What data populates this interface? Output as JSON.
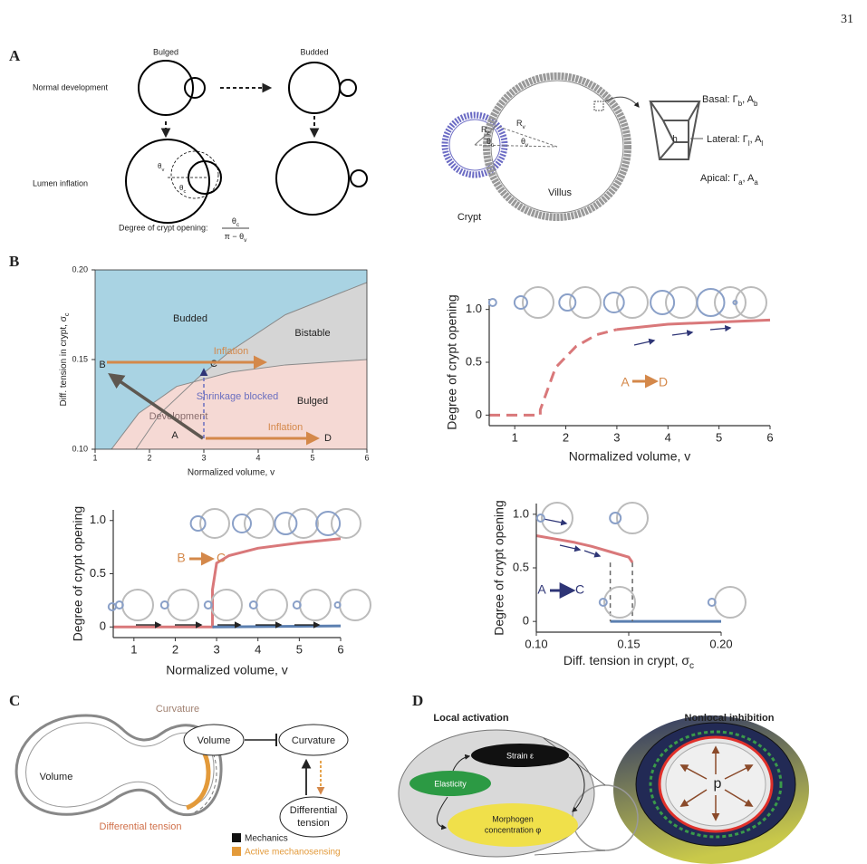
{
  "page_number": "31",
  "panel_labels": [
    "A",
    "B",
    "C",
    "D"
  ],
  "panel_a": {
    "bulged": "Bulged",
    "budded": "Budded",
    "normal_development": "Normal development",
    "lumen_inflation": "Lumen inflation",
    "opening_label": "Degree of crypt opening:",
    "fraction_top": [
      "θ",
      "c"
    ],
    "fraction_bottom": [
      "π − θ",
      "v"
    ],
    "theta_v": [
      "θ",
      "v"
    ],
    "theta_c": [
      "θ",
      "c"
    ],
    "crypt": "Crypt",
    "villus": "Villus",
    "r_c": [
      "R",
      "c"
    ],
    "r_v": [
      "R",
      "v"
    ],
    "d_theta_c": [
      "θ",
      "c"
    ],
    "d_theta_v": [
      "θ",
      "v"
    ],
    "basal": [
      "Basal: Γ",
      "b",
      ", A",
      "b"
    ],
    "lateral": [
      "Lateral: Γ",
      "l",
      ", A",
      "l"
    ],
    "apical": [
      "Apical: Γ",
      "a",
      ", A",
      "a"
    ],
    "h": "h"
  },
  "chart_data": [
    {
      "type": "phase",
      "xlabel": "Normalized volume, v",
      "ylabel": [
        "Diff. tension in crypt, σ",
        "c"
      ],
      "xlim": [
        1,
        6
      ],
      "ylim": [
        0.1,
        0.2
      ],
      "xticks": [
        1,
        2,
        3,
        4,
        5,
        6
      ],
      "yticks": [
        {
          "value": 0.1,
          "label": "0.10"
        },
        {
          "value": 0.15,
          "label": "0.15"
        },
        {
          "value": 0.2,
          "label": "0.20"
        }
      ],
      "background": "#a9d3e3",
      "series": [
        {
          "color": "#8a8a8a",
          "fill": "#d5d5d5",
          "x": [
            1.75,
            2.2,
            2.9,
            3.5,
            4.5,
            6
          ],
          "values": [
            0.1,
            0.12,
            0.14,
            0.155,
            0.175,
            0.193
          ]
        },
        {
          "color": "#8a8a8a",
          "fill": "#f5d9d4",
          "x": [
            1.3,
            1.8,
            2.5,
            3.5,
            4.5,
            6
          ],
          "values": [
            0.1,
            0.12,
            0.135,
            0.143,
            0.147,
            0.15
          ]
        }
      ],
      "annotations": [
        "Budded",
        "Bistable",
        "Bulged",
        "Inflation",
        "Inflation",
        "Shrinkage blocked",
        "Development",
        "A",
        "B",
        "C",
        "D"
      ]
    },
    {
      "type": "line",
      "xlabel": "Normalized volume, v",
      "ylabel": "Degree of crypt opening",
      "xlim": [
        0.5,
        6
      ],
      "ylim": [
        -0.1,
        1.1
      ],
      "xticks": [
        1,
        2,
        3,
        4,
        5,
        6
      ],
      "yticks": [
        0,
        0.5,
        {
          "value": 1,
          "label": "1.0"
        }
      ],
      "series": [
        {
          "color": "#d9787a",
          "dash": true,
          "x": [
            0.5,
            1.5,
            1.5,
            1.8,
            2.2,
            2.6,
            3.0
          ],
          "values": [
            0,
            0,
            0.05,
            0.45,
            0.65,
            0.76,
            0.81
          ]
        },
        {
          "color": "#d9787a",
          "x": [
            3,
            4,
            5,
            6
          ],
          "values": [
            0.81,
            0.86,
            0.88,
            0.9
          ]
        }
      ],
      "annotations": [
        "A",
        "D"
      ]
    },
    {
      "type": "line",
      "xlabel": "Normalized volume, v",
      "ylabel": "Degree of crypt opening",
      "xlim": [
        0.5,
        6
      ],
      "ylim": [
        -0.1,
        1.1
      ],
      "xticks": [
        1,
        2,
        3,
        4,
        5,
        6
      ],
      "yticks": [
        0,
        0.5,
        {
          "value": 1,
          "label": "1.0"
        }
      ],
      "series": [
        {
          "color": "#d9787a",
          "x": [
            0.5,
            2.9,
            2.9,
            3.0,
            3.3,
            4,
            5,
            6
          ],
          "values": [
            0,
            0,
            0.35,
            0.6,
            0.67,
            0.74,
            0.79,
            0.83
          ]
        },
        {
          "color": "#5b7fb0",
          "x": [
            2.9,
            6
          ],
          "values": [
            0,
            0.01
          ]
        }
      ],
      "annotations": [
        "B",
        "C"
      ]
    },
    {
      "type": "line",
      "xlabel": [
        "Diff. tension in crypt, σ",
        "c"
      ],
      "ylabel": "Degree of crypt opening",
      "xlim": [
        0.1,
        0.2
      ],
      "ylim": [
        -0.1,
        1.1
      ],
      "xticks": [
        {
          "value": 0.1,
          "label": "0.10"
        },
        {
          "value": 0.15,
          "label": "0.15"
        },
        {
          "value": 0.2,
          "label": "0.20"
        }
      ],
      "yticks": [
        0,
        0.5,
        {
          "value": 1,
          "label": "1.0"
        }
      ],
      "series": [
        {
          "color": "#d9787a",
          "x": [
            0.1,
            0.11,
            0.12,
            0.13,
            0.14,
            0.15,
            0.152
          ],
          "values": [
            0.8,
            0.77,
            0.74,
            0.7,
            0.65,
            0.6,
            0.55
          ]
        },
        {
          "color": "#5b7fb0",
          "x": [
            0.14,
            0.2
          ],
          "values": [
            0,
            0
          ]
        },
        {
          "color": "#666666",
          "dash": true,
          "x": [
            0.152,
            0.152
          ],
          "values": [
            0.55,
            0
          ]
        },
        {
          "color": "#666666",
          "dash": true,
          "x": [
            0.14,
            0.14
          ],
          "values": [
            0.55,
            0
          ]
        }
      ],
      "annotations": [
        "A",
        "C"
      ]
    }
  ],
  "panel_c": {
    "curvature": "Curvature",
    "volume": "Volume",
    "differential_tension": "Differential tension",
    "node_volume": "Volume",
    "node_curvature": "Curvature",
    "node_differential": [
      "Differential",
      "tension"
    ],
    "legend": [
      "Mechanics",
      "Active mechanosensing"
    ]
  },
  "panel_d": {
    "local_activation": "Local activation",
    "nonlocal_inhibition": "Nonlocal inhibition",
    "strain": "Strain ε",
    "elasticity": "Elasticity",
    "morphogen": [
      "Morphogen",
      "concentration φ"
    ],
    "p": "p"
  }
}
